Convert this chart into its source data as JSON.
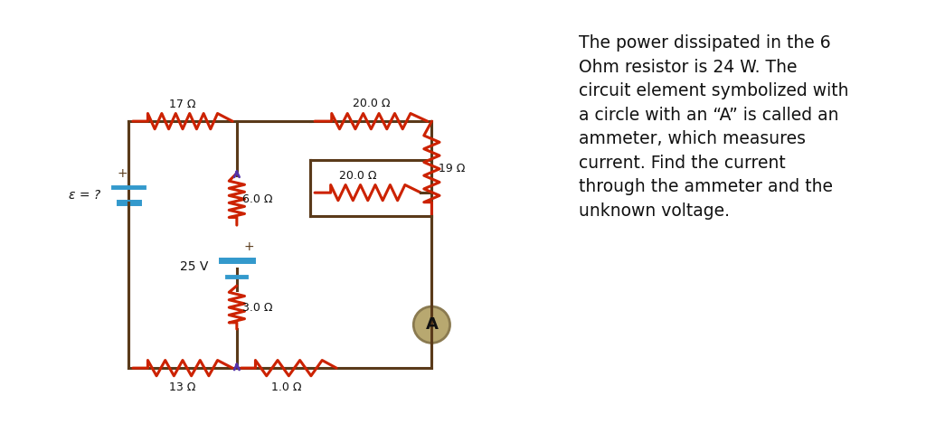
{
  "bg_color_circuit": "#c8b8a8",
  "bg_color_text": "#ffffff",
  "wire_color": "#5a3a1a",
  "resistor_color_red": "#cc2200",
  "resistor_color_purple": "#6633cc",
  "battery_color": "#3399cc",
  "ammeter_color": "#b8a870",
  "text_color": "#111111",
  "label_color": "#111111",
  "emf_color": "#228800",
  "text_block": "The power dissipated in the 6\nOhm resistor is 24 W. The\ncircuit element symbolized with\na circle with an “A” is called an\nammeter, which measures\ncurrent. Find the current\nthrough the ammeter and the\nunknown voltage.",
  "resistors": {
    "R17": "17 Ω",
    "R20top": "20.0 Ω",
    "R20mid": "20.0 Ω",
    "R19": "19 Ω",
    "R6": "6.0 Ω",
    "R3": "3.0 Ω",
    "R13": "13 Ω",
    "R1": "1.0 Ω"
  },
  "battery_labels": {
    "emf": "ε = ?",
    "v25": "25 V"
  },
  "ammeter_label": "A"
}
